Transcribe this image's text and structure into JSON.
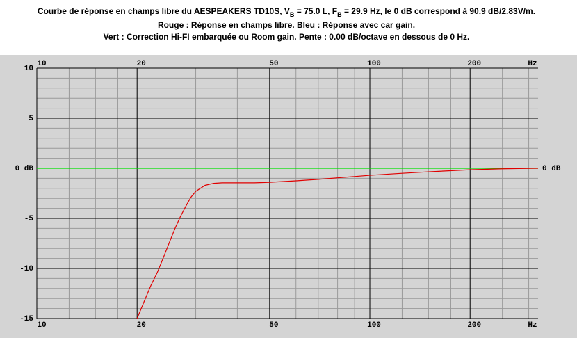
{
  "chart_data": {
    "type": "line",
    "title": {
      "parts": [
        "Courbe de réponse en champs libre du AESPEAKERS TD10S, V",
        "B",
        " = 75.0 L, F",
        "B",
        " = 29.9 Hz, le 0 dB correspond à 90.9 dB/2.83V/m."
      ]
    },
    "subtitle": [
      "Rouge : Réponse en champs libre. Bleu : Réponse avec car gain.",
      "Vert : Correction Hi-FI embarquée ou Room gain. Pente : 0.00 dB/octave en dessous de 0 Hz."
    ],
    "x_unit": "Hz",
    "xscale": "log",
    "xlim": [
      10,
      320
    ],
    "xticks": [
      10,
      20,
      50,
      100,
      200
    ],
    "xminorticks": [
      12.5,
      15,
      17.5,
      30,
      40,
      60,
      70,
      80,
      90,
      125,
      150,
      175,
      250,
      300
    ],
    "ylim": [
      -15,
      10
    ],
    "yticks": [
      10,
      5,
      {
        "value": 0,
        "label": "0 dB"
      },
      -5,
      -10,
      -15
    ],
    "yminorticks": [
      9,
      8,
      7,
      6,
      4,
      3,
      2,
      1,
      -1,
      -2,
      -3,
      -4,
      -6,
      -7,
      -8,
      -9,
      -11,
      -12,
      -13,
      -14
    ],
    "grid": true,
    "series": [
      {
        "color": "#e00000",
        "x": [
          20,
          21,
          22,
          23,
          24,
          25,
          26,
          27,
          28,
          29,
          30,
          32,
          34,
          36,
          40,
          45,
          50,
          60,
          70,
          80,
          100,
          125,
          150,
          200,
          250,
          320
        ],
        "values": [
          -15,
          -13.3,
          -11.7,
          -10.4,
          -8.9,
          -7.4,
          -6.0,
          -4.8,
          -3.8,
          -2.9,
          -2.3,
          -1.7,
          -1.5,
          -1.45,
          -1.45,
          -1.45,
          -1.4,
          -1.25,
          -1.1,
          -0.95,
          -0.7,
          -0.5,
          -0.35,
          -0.15,
          -0.05,
          0
        ]
      },
      {
        "color": "#00e000",
        "x": [
          10,
          320
        ],
        "values": [
          0,
          0
        ]
      }
    ]
  }
}
